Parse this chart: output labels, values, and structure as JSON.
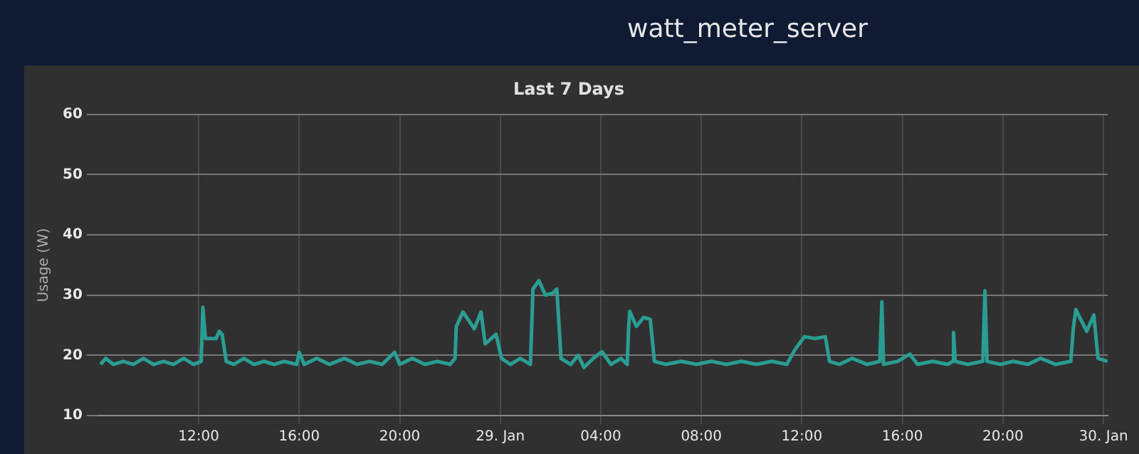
{
  "chart_data": {
    "type": "line",
    "title": "watt_meter_server",
    "subtitle": "Last 7 Days",
    "ylabel": "Usage (W)",
    "xlim": [
      "--01-28T08:00",
      "--01-30T00:10"
    ],
    "xticks": [
      {
        "value": "--01-28T12:00",
        "label": "12:00"
      },
      {
        "value": "--01-28T16:00",
        "label": "16:00"
      },
      {
        "value": "--01-28T20:00",
        "label": "20:00"
      },
      {
        "value": "--01-29T00:00",
        "label": "29. Jan"
      },
      {
        "value": "--01-29T04:00",
        "label": "04:00"
      },
      {
        "value": "--01-29T08:00",
        "label": "08:00"
      },
      {
        "value": "--01-29T12:00",
        "label": "12:00"
      },
      {
        "value": "--01-29T16:00",
        "label": "16:00"
      },
      {
        "value": "--01-29T20:00",
        "label": "20:00"
      },
      {
        "value": "--01-30T00:00",
        "label": "30. Jan"
      }
    ],
    "ylim": [
      10,
      60
    ],
    "yticks": [
      10,
      20,
      30,
      40,
      50,
      60
    ],
    "grid": true,
    "legend": false,
    "marker": "none",
    "line_style": "solid",
    "series": [
      {
        "color": "#2a9d93",
        "x": [
          "--01-28T08:06",
          "--01-28T08:18",
          "--01-28T08:36",
          "--01-28T09:00",
          "--01-28T09:24",
          "--01-28T09:48",
          "--01-28T10:12",
          "--01-28T10:36",
          "--01-28T11:00",
          "--01-28T11:24",
          "--01-28T11:48",
          "--01-28T12:06",
          "--01-28T12:10",
          "--01-28T12:16",
          "--01-28T12:42",
          "--01-28T12:49",
          "--01-28T12:56",
          "--01-28T13:06",
          "--01-28T13:24",
          "--01-28T13:48",
          "--01-28T14:12",
          "--01-28T14:36",
          "--01-28T15:00",
          "--01-28T15:24",
          "--01-28T15:54",
          "--01-28T16:00",
          "--01-28T16:12",
          "--01-28T16:42",
          "--01-28T17:12",
          "--01-28T17:48",
          "--01-28T18:18",
          "--01-28T18:48",
          "--01-28T19:18",
          "--01-28T19:48",
          "--01-28T20:00",
          "--01-28T20:30",
          "--01-28T21:00",
          "--01-28T21:30",
          "--01-28T22:00",
          "--01-28T22:12",
          "--01-28T22:15",
          "--01-28T22:31",
          "--01-28T22:58",
          "--01-28T23:14",
          "--01-28T23:24",
          "--01-28T23:50",
          "--01-29T00:03",
          "--01-29T00:24",
          "--01-29T00:48",
          "--01-29T01:12",
          "--01-29T01:18",
          "--01-29T01:32",
          "--01-29T01:48",
          "--01-29T02:05",
          "--01-29T02:15",
          "--01-29T02:25",
          "--01-29T02:48",
          "--01-29T03:06",
          "--01-29T03:20",
          "--01-29T03:42",
          "--01-29T04:03",
          "--01-29T04:24",
          "--01-29T04:48",
          "--01-29T05:03",
          "--01-29T05:06",
          "--01-29T05:09",
          "--01-29T05:25",
          "--01-29T05:42",
          "--01-29T05:58",
          "--01-29T06:08",
          "--01-29T06:36",
          "--01-29T07:12",
          "--01-29T07:48",
          "--01-29T08:24",
          "--01-29T09:00",
          "--01-29T09:36",
          "--01-29T10:12",
          "--01-29T10:48",
          "--01-29T11:24",
          "--01-29T11:44",
          "--01-29T12:06",
          "--01-29T12:30",
          "--01-29T12:56",
          "--01-29T13:06",
          "--01-29T13:30",
          "--01-29T14:00",
          "--01-29T14:36",
          "--01-29T15:06",
          "--01-29T15:11",
          "--01-29T15:15",
          "--01-29T15:48",
          "--01-29T16:18",
          "--01-29T16:36",
          "--01-29T17:12",
          "--01-29T17:48",
          "--01-29T18:00",
          "--01-29T18:02",
          "--01-29T18:06",
          "--01-29T18:36",
          "--01-29T19:12",
          "--01-29T19:17",
          "--01-29T19:22",
          "--01-29T19:54",
          "--01-29T20:24",
          "--01-29T21:00",
          "--01-29T21:30",
          "--01-29T22:06",
          "--01-29T22:42",
          "--01-29T22:48",
          "--01-29T22:54",
          "--01-29T23:20",
          "--01-29T23:37",
          "--01-29T23:47",
          "--01-30T00:10"
        ],
        "values": [
          18.5,
          19.5,
          18.5,
          19,
          18.5,
          19.5,
          18.5,
          19,
          18.5,
          19.5,
          18.5,
          19,
          28,
          22.8,
          22.8,
          24,
          23.5,
          19,
          18.5,
          19.5,
          18.5,
          19,
          18.5,
          19,
          18.5,
          20.5,
          18.5,
          19.5,
          18.5,
          19.5,
          18.5,
          19,
          18.5,
          20.5,
          18.5,
          19.5,
          18.5,
          19,
          18.5,
          19.5,
          24.8,
          27.2,
          24.4,
          27.2,
          21.9,
          23.5,
          19.5,
          18.5,
          19.5,
          18.5,
          31,
          32.4,
          30,
          30.3,
          31,
          19.5,
          18.5,
          20,
          18,
          19.5,
          20.6,
          18.5,
          19.5,
          18.5,
          24,
          27.3,
          24.8,
          26.3,
          26,
          19,
          18.5,
          19,
          18.5,
          19,
          18.5,
          19,
          18.5,
          19,
          18.5,
          21,
          23.1,
          22.8,
          23.1,
          19,
          18.5,
          19.5,
          18.5,
          19,
          28.9,
          18.5,
          19,
          20.2,
          18.5,
          19,
          18.5,
          19,
          23.8,
          19,
          18.5,
          19,
          30.7,
          19,
          18.5,
          19,
          18.5,
          19.5,
          18.5,
          19,
          24.5,
          27.6,
          24,
          26.7,
          19.5,
          19
        ]
      }
    ]
  }
}
